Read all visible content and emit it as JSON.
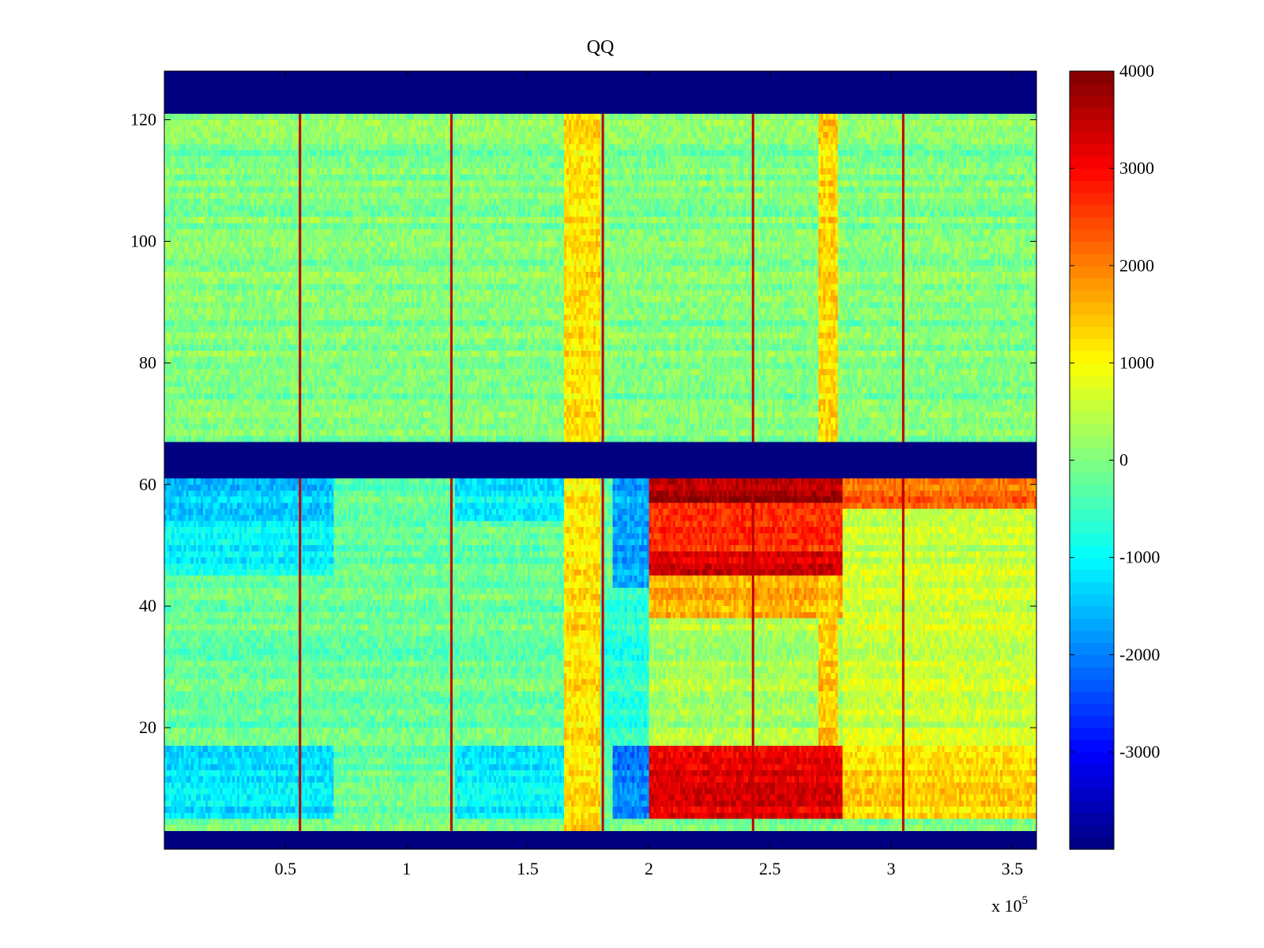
{
  "chart_data": {
    "type": "heatmap",
    "title": "QQ",
    "xlabel": "",
    "ylabel": "",
    "x_exponent_label": {
      "base": "x 10",
      "exponent": "5"
    },
    "xlim": [
      0,
      360000
    ],
    "ylim": [
      0,
      128
    ],
    "x_ticks": [
      {
        "value": 50000,
        "label": "0.5"
      },
      {
        "value": 100000,
        "label": "1"
      },
      {
        "value": 150000,
        "label": "1.5"
      },
      {
        "value": 200000,
        "label": "2"
      },
      {
        "value": 250000,
        "label": "2.5"
      },
      {
        "value": 300000,
        "label": "3"
      },
      {
        "value": 350000,
        "label": "3.5"
      }
    ],
    "y_ticks": [
      {
        "value": 20,
        "label": "20"
      },
      {
        "value": 40,
        "label": "40"
      },
      {
        "value": 60,
        "label": "60"
      },
      {
        "value": 80,
        "label": "80"
      },
      {
        "value": 100,
        "label": "100"
      },
      {
        "value": 120,
        "label": "120"
      }
    ],
    "colorbar": {
      "colormap": "jet",
      "clim": [
        -4000,
        4000
      ],
      "ticks": [
        {
          "value": 4000,
          "label": "4000"
        },
        {
          "value": 3000,
          "label": "3000"
        },
        {
          "value": 2000,
          "label": "2000"
        },
        {
          "value": 1000,
          "label": "1000"
        },
        {
          "value": 0,
          "label": "0"
        },
        {
          "value": -1000,
          "label": "-1000"
        },
        {
          "value": -2000,
          "label": "-2000"
        },
        {
          "value": -3000,
          "label": "-3000"
        }
      ]
    },
    "masked_channel_ranges": [
      [
        0,
        3
      ],
      [
        61,
        67
      ],
      [
        121,
        128
      ]
    ],
    "masked_value": -4000,
    "regions": [
      {
        "x": [
          0,
          360000
        ],
        "y": [
          67,
          121
        ],
        "value": 0
      },
      {
        "x": [
          0,
          360000
        ],
        "y": [
          3,
          61
        ],
        "value": -200
      },
      {
        "x": [
          0,
          70000
        ],
        "y": [
          54,
          61
        ],
        "value": -1400
      },
      {
        "x": [
          0,
          70000
        ],
        "y": [
          45,
          54
        ],
        "value": -1000
      },
      {
        "x": [
          0,
          70000
        ],
        "y": [
          5,
          17
        ],
        "value": -1200
      },
      {
        "x": [
          120000,
          165000
        ],
        "y": [
          54,
          61
        ],
        "value": -1100
      },
      {
        "x": [
          120000,
          165000
        ],
        "y": [
          5,
          17
        ],
        "value": -1100
      },
      {
        "x": [
          165000,
          180000
        ],
        "y": [
          3,
          121
        ],
        "value": 1200
      },
      {
        "x": [
          185000,
          200000
        ],
        "y": [
          43,
          61
        ],
        "value": -1700
      },
      {
        "x": [
          185000,
          200000
        ],
        "y": [
          5,
          17
        ],
        "value": -2000
      },
      {
        "x": [
          180000,
          200000
        ],
        "y": [
          17,
          43
        ],
        "value": -700
      },
      {
        "x": [
          200000,
          280000
        ],
        "y": [
          57,
          61
        ],
        "value": 3700
      },
      {
        "x": [
          200000,
          280000
        ],
        "y": [
          49,
          57
        ],
        "value": 2700
      },
      {
        "x": [
          200000,
          280000
        ],
        "y": [
          45,
          49
        ],
        "value": 3300
      },
      {
        "x": [
          200000,
          280000
        ],
        "y": [
          38,
          45
        ],
        "value": 1600
      },
      {
        "x": [
          200000,
          280000
        ],
        "y": [
          17,
          38
        ],
        "value": 300
      },
      {
        "x": [
          200000,
          280000
        ],
        "y": [
          5,
          17
        ],
        "value": 3200
      },
      {
        "x": [
          270000,
          278000
        ],
        "y": [
          67,
          121
        ],
        "value": 1300
      },
      {
        "x": [
          270000,
          278000
        ],
        "y": [
          17,
          45
        ],
        "value": 1400
      },
      {
        "x": [
          280000,
          360000
        ],
        "y": [
          56,
          61
        ],
        "value": 2200
      },
      {
        "x": [
          280000,
          360000
        ],
        "y": [
          17,
          56
        ],
        "value": 600
      },
      {
        "x": [
          280000,
          360000
        ],
        "y": [
          5,
          17
        ],
        "value": 1300
      }
    ],
    "vertical_spike_lines": [
      {
        "x": 56000,
        "value": 3500
      },
      {
        "x": 118500,
        "value": 3500
      },
      {
        "x": 181000,
        "value": 3500
      },
      {
        "x": 243000,
        "value": 3500
      },
      {
        "x": 305000,
        "value": 3500
      }
    ],
    "grid": false,
    "legend": "none"
  }
}
